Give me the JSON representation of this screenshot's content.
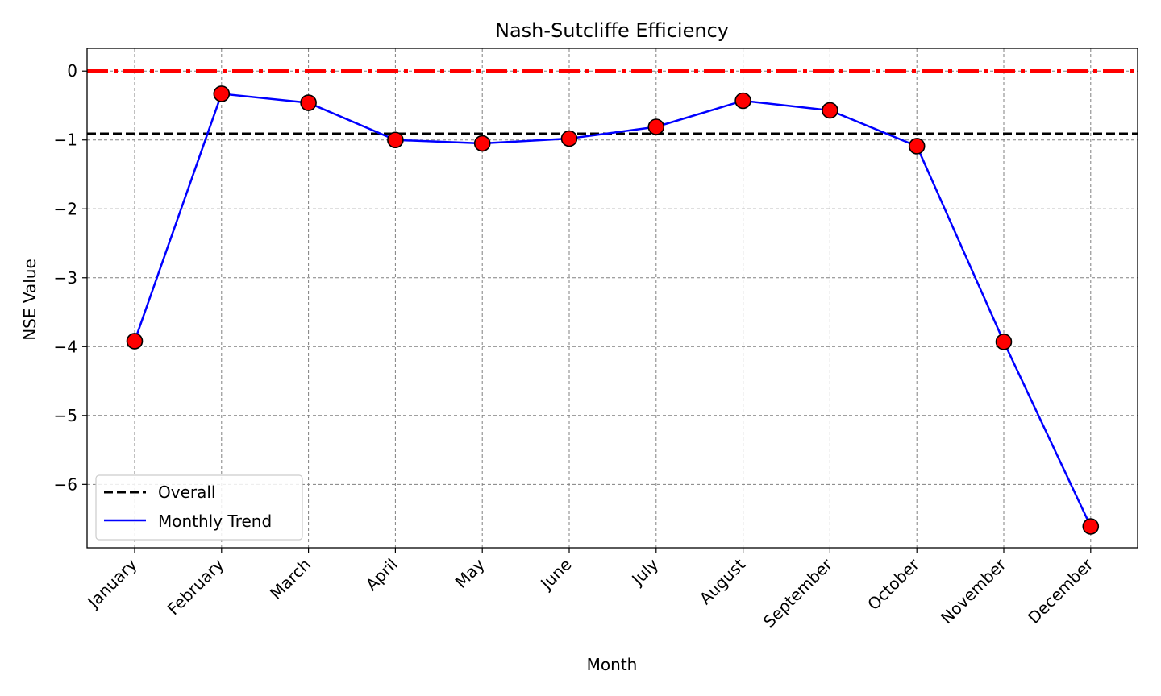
{
  "chart_data": {
    "type": "line",
    "title": "Nash-Sutcliffe Efficiency",
    "xlabel": "Month",
    "ylabel": "NSE Value",
    "categories": [
      "January",
      "February",
      "March",
      "April",
      "May",
      "June",
      "July",
      "August",
      "September",
      "October",
      "November",
      "December"
    ],
    "series": [
      {
        "name": "Monthly Trend",
        "values": [
          -3.92,
          -0.33,
          -0.46,
          -1.0,
          -1.05,
          -0.98,
          -0.81,
          -0.43,
          -0.57,
          -1.09,
          -3.93,
          -6.61
        ],
        "line_color": "#0000ff",
        "marker_color": "#ff0000",
        "marker_edge_color": "#000000"
      }
    ],
    "reference_lines": [
      {
        "name": "Overall",
        "value": -0.91,
        "color": "#000000",
        "style": "dashed"
      },
      {
        "name": "",
        "value": 0,
        "color": "#ff0000",
        "style": "dash-dot"
      }
    ],
    "ylim": [
      -6.92,
      0.33
    ],
    "yticks": [
      0,
      -1,
      -2,
      -3,
      -4,
      -5,
      -6
    ],
    "ytick_labels": [
      "0",
      "−1",
      "−2",
      "−3",
      "−4",
      "−5",
      "−6"
    ],
    "grid": true,
    "legend": {
      "placement": "lower-left",
      "entries": [
        {
          "label": "Overall",
          "color": "#000000",
          "style": "dashed"
        },
        {
          "label": "Monthly Trend",
          "color": "#0000ff",
          "style": "solid"
        }
      ]
    }
  }
}
